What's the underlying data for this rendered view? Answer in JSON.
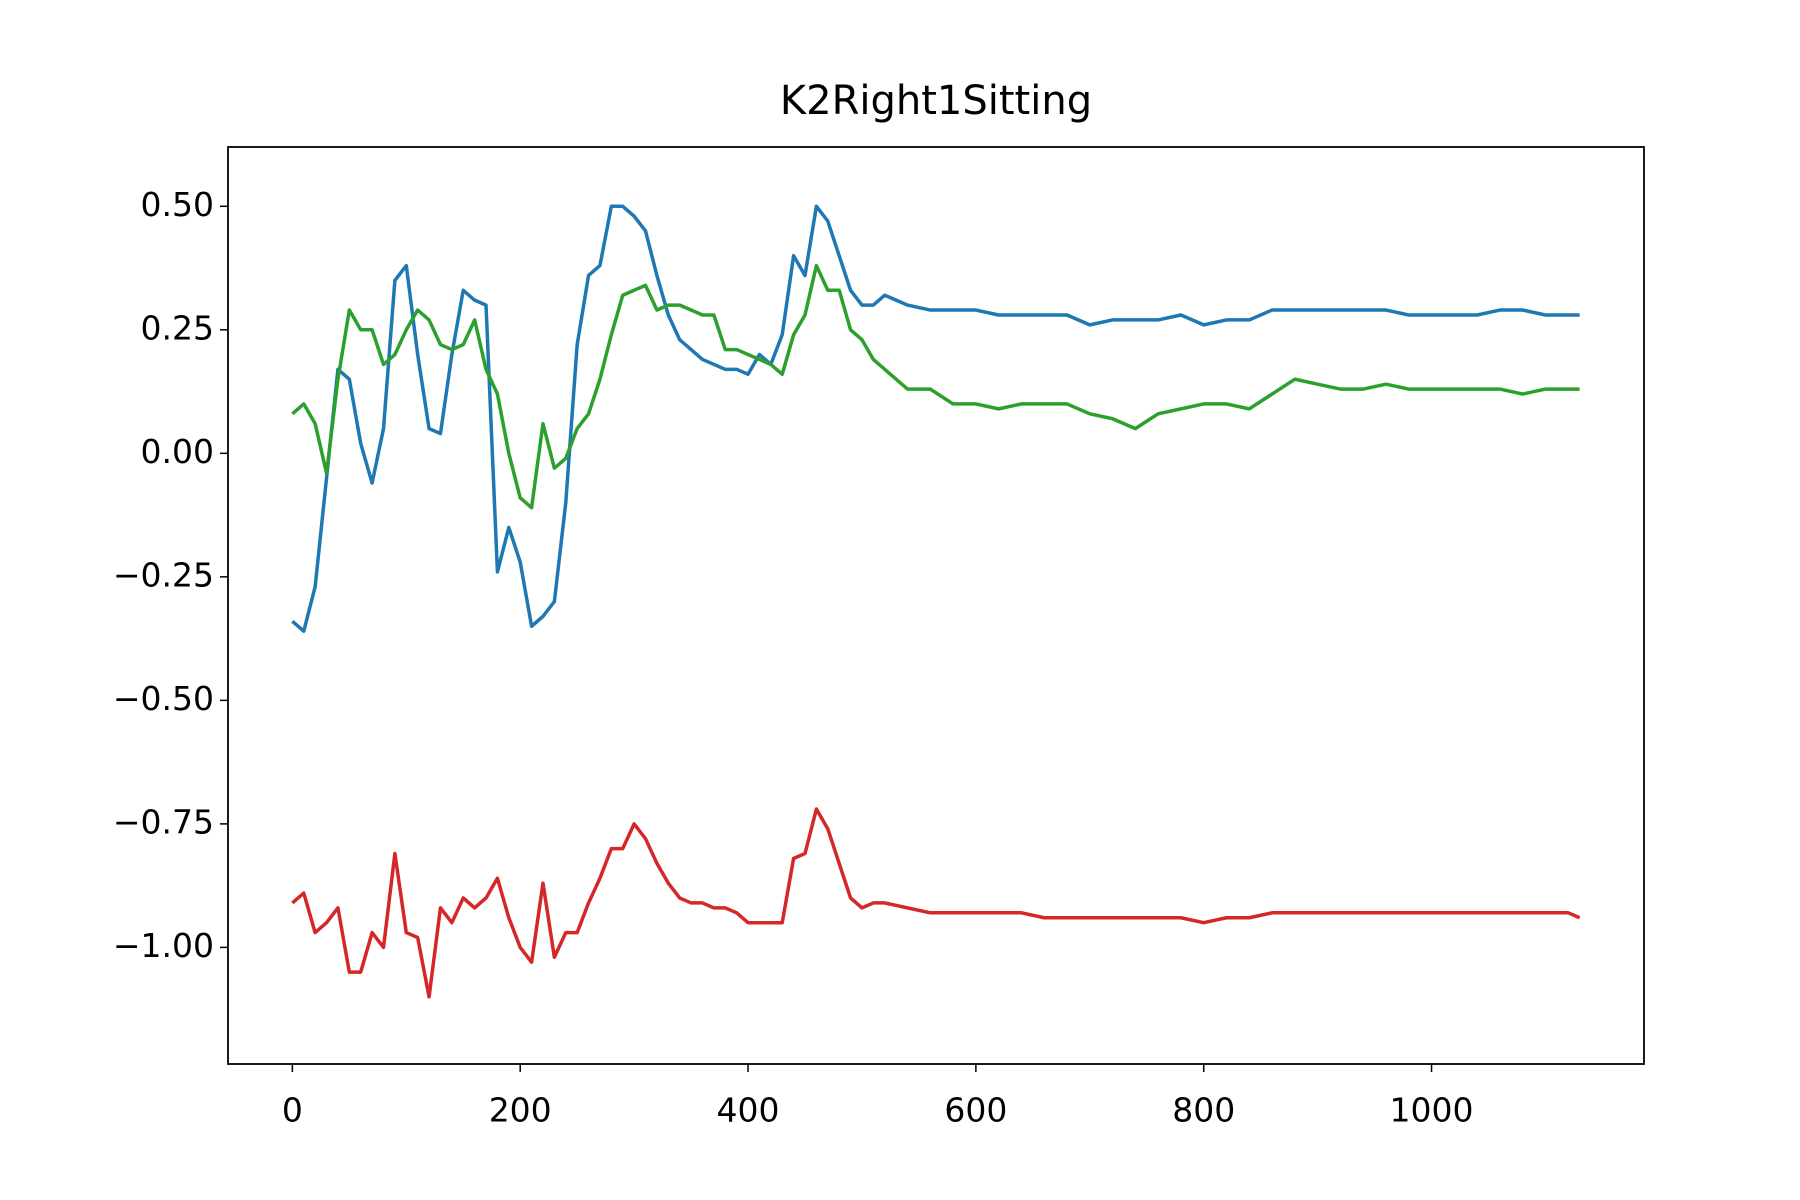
{
  "chart_data": {
    "type": "line",
    "title": "K2Right1Sitting",
    "x": [
      0,
      10,
      20,
      30,
      40,
      50,
      60,
      70,
      80,
      90,
      100,
      110,
      120,
      130,
      140,
      150,
      160,
      170,
      180,
      190,
      200,
      210,
      220,
      230,
      240,
      250,
      260,
      270,
      280,
      290,
      300,
      310,
      320,
      330,
      340,
      350,
      360,
      370,
      380,
      390,
      400,
      410,
      420,
      430,
      440,
      450,
      460,
      470,
      480,
      490,
      500,
      510,
      520,
      540,
      560,
      580,
      600,
      620,
      640,
      660,
      680,
      700,
      720,
      740,
      760,
      780,
      800,
      820,
      840,
      860,
      880,
      900,
      920,
      940,
      960,
      980,
      1000,
      1020,
      1040,
      1060,
      1080,
      1100,
      1120,
      1130
    ],
    "series": [
      {
        "color": "#1f77b4",
        "values": [
          -0.34,
          -0.36,
          -0.27,
          -0.05,
          0.17,
          0.15,
          0.02,
          -0.06,
          0.05,
          0.35,
          0.38,
          0.2,
          0.05,
          0.04,
          0.2,
          0.33,
          0.31,
          0.3,
          -0.24,
          -0.15,
          -0.22,
          -0.35,
          -0.33,
          -0.3,
          -0.1,
          0.22,
          0.36,
          0.38,
          0.5,
          0.5,
          0.48,
          0.45,
          0.36,
          0.28,
          0.23,
          0.21,
          0.19,
          0.18,
          0.17,
          0.17,
          0.16,
          0.2,
          0.18,
          0.24,
          0.4,
          0.36,
          0.5,
          0.47,
          0.4,
          0.33,
          0.3,
          0.3,
          0.32,
          0.3,
          0.29,
          0.29,
          0.29,
          0.28,
          0.28,
          0.28,
          0.28,
          0.26,
          0.27,
          0.27,
          0.27,
          0.28,
          0.26,
          0.27,
          0.27,
          0.29,
          0.29,
          0.29,
          0.29,
          0.29,
          0.29,
          0.28,
          0.28,
          0.28,
          0.28,
          0.29,
          0.29,
          0.28,
          0.28,
          0.28
        ]
      },
      {
        "color": "#2ca02c",
        "values": [
          0.08,
          0.1,
          0.06,
          -0.04,
          0.15,
          0.29,
          0.25,
          0.25,
          0.18,
          0.2,
          0.25,
          0.29,
          0.27,
          0.22,
          0.21,
          0.22,
          0.27,
          0.17,
          0.12,
          0.0,
          -0.09,
          -0.11,
          0.06,
          -0.03,
          -0.01,
          0.05,
          0.08,
          0.15,
          0.24,
          0.32,
          0.33,
          0.34,
          0.29,
          0.3,
          0.3,
          0.29,
          0.28,
          0.28,
          0.21,
          0.21,
          0.2,
          0.19,
          0.18,
          0.16,
          0.24,
          0.28,
          0.38,
          0.33,
          0.33,
          0.25,
          0.23,
          0.19,
          0.17,
          0.13,
          0.13,
          0.1,
          0.1,
          0.09,
          0.1,
          0.1,
          0.1,
          0.08,
          0.07,
          0.05,
          0.08,
          0.09,
          0.1,
          0.1,
          0.09,
          0.12,
          0.15,
          0.14,
          0.13,
          0.13,
          0.14,
          0.13,
          0.13,
          0.13,
          0.13,
          0.13,
          0.12,
          0.13,
          0.13,
          0.13
        ]
      },
      {
        "color": "#d62728",
        "values": [
          -0.91,
          -0.89,
          -0.97,
          -0.95,
          -0.92,
          -1.05,
          -1.05,
          -0.97,
          -1.0,
          -0.81,
          -0.97,
          -0.98,
          -1.1,
          -0.92,
          -0.95,
          -0.9,
          -0.92,
          -0.9,
          -0.86,
          -0.94,
          -1.0,
          -1.03,
          -0.87,
          -1.02,
          -0.97,
          -0.97,
          -0.91,
          -0.86,
          -0.8,
          -0.8,
          -0.75,
          -0.78,
          -0.83,
          -0.87,
          -0.9,
          -0.91,
          -0.91,
          -0.92,
          -0.92,
          -0.93,
          -0.95,
          -0.95,
          -0.95,
          -0.95,
          -0.82,
          -0.81,
          -0.72,
          -0.76,
          -0.83,
          -0.9,
          -0.92,
          -0.91,
          -0.91,
          -0.92,
          -0.93,
          -0.93,
          -0.93,
          -0.93,
          -0.93,
          -0.94,
          -0.94,
          -0.94,
          -0.94,
          -0.94,
          -0.94,
          -0.94,
          -0.95,
          -0.94,
          -0.94,
          -0.93,
          -0.93,
          -0.93,
          -0.93,
          -0.93,
          -0.93,
          -0.93,
          -0.93,
          -0.93,
          -0.93,
          -0.93,
          -0.93,
          -0.93,
          -0.93,
          -0.94
        ]
      }
    ],
    "xlim": [
      -56.5,
      1186.5
    ],
    "ylim": [
      -1.236,
      0.62
    ],
    "xticks": [
      0,
      200,
      400,
      600,
      800,
      1000
    ],
    "yticks": [
      {
        "value": -1.0,
        "label": "−1.00"
      },
      {
        "value": -0.75,
        "label": "−0.75"
      },
      {
        "value": -0.5,
        "label": "−0.50"
      },
      {
        "value": -0.25,
        "label": "−0.25"
      },
      {
        "value": 0,
        "label": "0.00"
      },
      {
        "value": 0.25,
        "label": "0.25"
      },
      {
        "value": 0.5,
        "label": "0.50"
      }
    ],
    "grid": false
  }
}
